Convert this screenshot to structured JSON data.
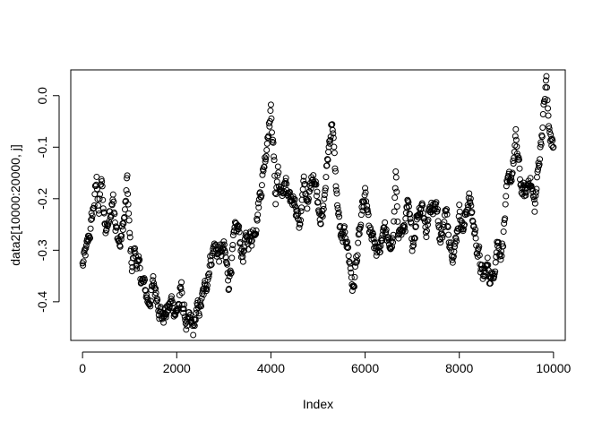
{
  "chart_data": {
    "type": "scatter",
    "title": "",
    "xlabel": "Index",
    "ylabel": "data2[10000:20000, j]",
    "xlim": [
      -250,
      10250
    ],
    "ylim": [
      -0.475,
      0.05
    ],
    "x_ticks": [
      0,
      2000,
      4000,
      6000,
      8000,
      10000
    ],
    "x_tick_labels": [
      "0",
      "2000",
      "4000",
      "6000",
      "8000",
      "10000"
    ],
    "y_ticks": [
      -0.4,
      -0.3,
      -0.2,
      -0.1,
      0.0
    ],
    "y_tick_labels": [
      "-0.4",
      "-0.3",
      "-0.2",
      "-0.1",
      "0.0"
    ],
    "grid": false,
    "legend": "none",
    "marker": "open-circle",
    "marker_color": "#000000",
    "point_count": 10001,
    "series": [
      {
        "x": [
          0,
          100,
          200,
          300,
          350,
          400,
          450,
          500,
          600,
          650,
          700,
          800,
          900,
          950,
          1000,
          1050,
          1100,
          1200,
          1300,
          1400,
          1500,
          1600,
          1700,
          1800,
          1900,
          2000,
          2100,
          2150,
          2200,
          2300,
          2350,
          2400,
          2500,
          2600,
          2700,
          2800,
          2900,
          3000,
          3100,
          3200,
          3300,
          3400,
          3500,
          3600,
          3700,
          3800,
          3900,
          3950,
          4000,
          4050,
          4100,
          4150,
          4200,
          4300,
          4400,
          4500,
          4600,
          4700,
          4800,
          4900,
          5000,
          5100,
          5200,
          5250,
          5300,
          5350,
          5400,
          5500,
          5600,
          5700,
          5750,
          5800,
          5900,
          6000,
          6100,
          6200,
          6300,
          6400,
          6500,
          6600,
          6650,
          6700,
          6800,
          6900,
          7000,
          7100,
          7200,
          7300,
          7400,
          7500,
          7600,
          7700,
          7800,
          7900,
          8000,
          8100,
          8200,
          8300,
          8400,
          8500,
          8600,
          8700,
          8800,
          8900,
          9000,
          9100,
          9200,
          9250,
          9300,
          9400,
          9500,
          9600,
          9700,
          9800,
          9850,
          9900,
          10000
        ],
        "y": [
          -0.33,
          -0.3,
          -0.24,
          -0.17,
          -0.22,
          -0.16,
          -0.24,
          -0.26,
          -0.22,
          -0.17,
          -0.26,
          -0.29,
          -0.23,
          -0.17,
          -0.28,
          -0.33,
          -0.3,
          -0.34,
          -0.37,
          -0.4,
          -0.37,
          -0.39,
          -0.43,
          -0.42,
          -0.4,
          -0.42,
          -0.38,
          -0.42,
          -0.44,
          -0.45,
          -0.46,
          -0.43,
          -0.41,
          -0.38,
          -0.32,
          -0.29,
          -0.31,
          -0.3,
          -0.36,
          -0.29,
          -0.26,
          -0.31,
          -0.28,
          -0.27,
          -0.23,
          -0.17,
          -0.1,
          -0.05,
          -0.03,
          -0.1,
          -0.2,
          -0.14,
          -0.2,
          -0.17,
          -0.22,
          -0.19,
          -0.25,
          -0.18,
          -0.21,
          -0.14,
          -0.2,
          -0.24,
          -0.13,
          -0.08,
          -0.04,
          -0.13,
          -0.2,
          -0.29,
          -0.27,
          -0.34,
          -0.38,
          -0.33,
          -0.26,
          -0.2,
          -0.27,
          -0.3,
          -0.31,
          -0.24,
          -0.3,
          -0.28,
          -0.17,
          -0.25,
          -0.27,
          -0.22,
          -0.29,
          -0.23,
          -0.2,
          -0.26,
          -0.21,
          -0.2,
          -0.28,
          -0.23,
          -0.27,
          -0.3,
          -0.22,
          -0.26,
          -0.19,
          -0.25,
          -0.3,
          -0.36,
          -0.33,
          -0.36,
          -0.28,
          -0.3,
          -0.2,
          -0.16,
          -0.09,
          -0.13,
          -0.17,
          -0.2,
          -0.15,
          -0.22,
          -0.12,
          -0.02,
          0.03,
          -0.07,
          -0.1
        ]
      }
    ]
  }
}
